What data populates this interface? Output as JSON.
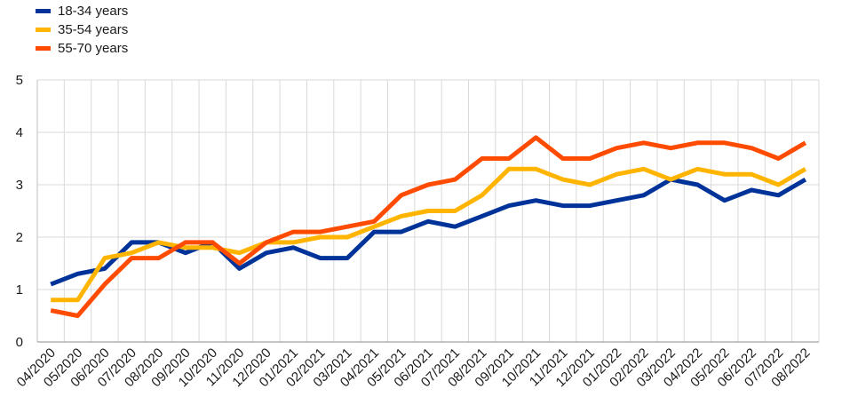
{
  "chart_data": {
    "type": "line",
    "x": [
      "04/2020",
      "05/2020",
      "06/2020",
      "07/2020",
      "08/2020",
      "09/2020",
      "10/2020",
      "11/2020",
      "12/2020",
      "01/2021",
      "02/2021",
      "03/2021",
      "04/2021",
      "05/2021",
      "06/2021",
      "07/2021",
      "08/2021",
      "09/2021",
      "10/2021",
      "11/2021",
      "12/2021",
      "01/2022",
      "02/2022",
      "03/2022",
      "04/2022",
      "05/2022",
      "06/2022",
      "07/2022",
      "08/2022"
    ],
    "series": [
      {
        "name": "18-34 years",
        "color": "#003399",
        "values": [
          1.1,
          1.3,
          1.4,
          1.9,
          1.9,
          1.7,
          1.9,
          1.4,
          1.7,
          1.8,
          1.6,
          1.6,
          2.1,
          2.1,
          2.3,
          2.2,
          2.4,
          2.6,
          2.7,
          2.6,
          2.6,
          2.7,
          2.8,
          3.1,
          3.0,
          2.7,
          2.9,
          2.8,
          3.1
        ]
      },
      {
        "name": "35-54 years",
        "color": "#ffb400",
        "values": [
          0.8,
          0.8,
          1.6,
          1.7,
          1.9,
          1.8,
          1.8,
          1.7,
          1.9,
          1.9,
          2.0,
          2.0,
          2.2,
          2.4,
          2.5,
          2.5,
          2.8,
          3.3,
          3.3,
          3.1,
          3.0,
          3.2,
          3.3,
          3.1,
          3.3,
          3.2,
          3.2,
          3.0,
          3.3
        ]
      },
      {
        "name": "55-70 years",
        "color": "#ff4b00",
        "values": [
          0.6,
          0.5,
          1.1,
          1.6,
          1.6,
          1.9,
          1.9,
          1.5,
          1.9,
          2.1,
          2.1,
          2.2,
          2.3,
          2.8,
          3.0,
          3.1,
          3.5,
          3.5,
          3.9,
          3.5,
          3.5,
          3.7,
          3.8,
          3.7,
          3.8,
          3.8,
          3.7,
          3.5,
          3.8
        ]
      }
    ],
    "yticks": [
      "0",
      "1",
      "2",
      "3",
      "4",
      "5"
    ],
    "ylim": [
      0,
      5
    ],
    "grid": true,
    "legend_position": "top-left"
  }
}
